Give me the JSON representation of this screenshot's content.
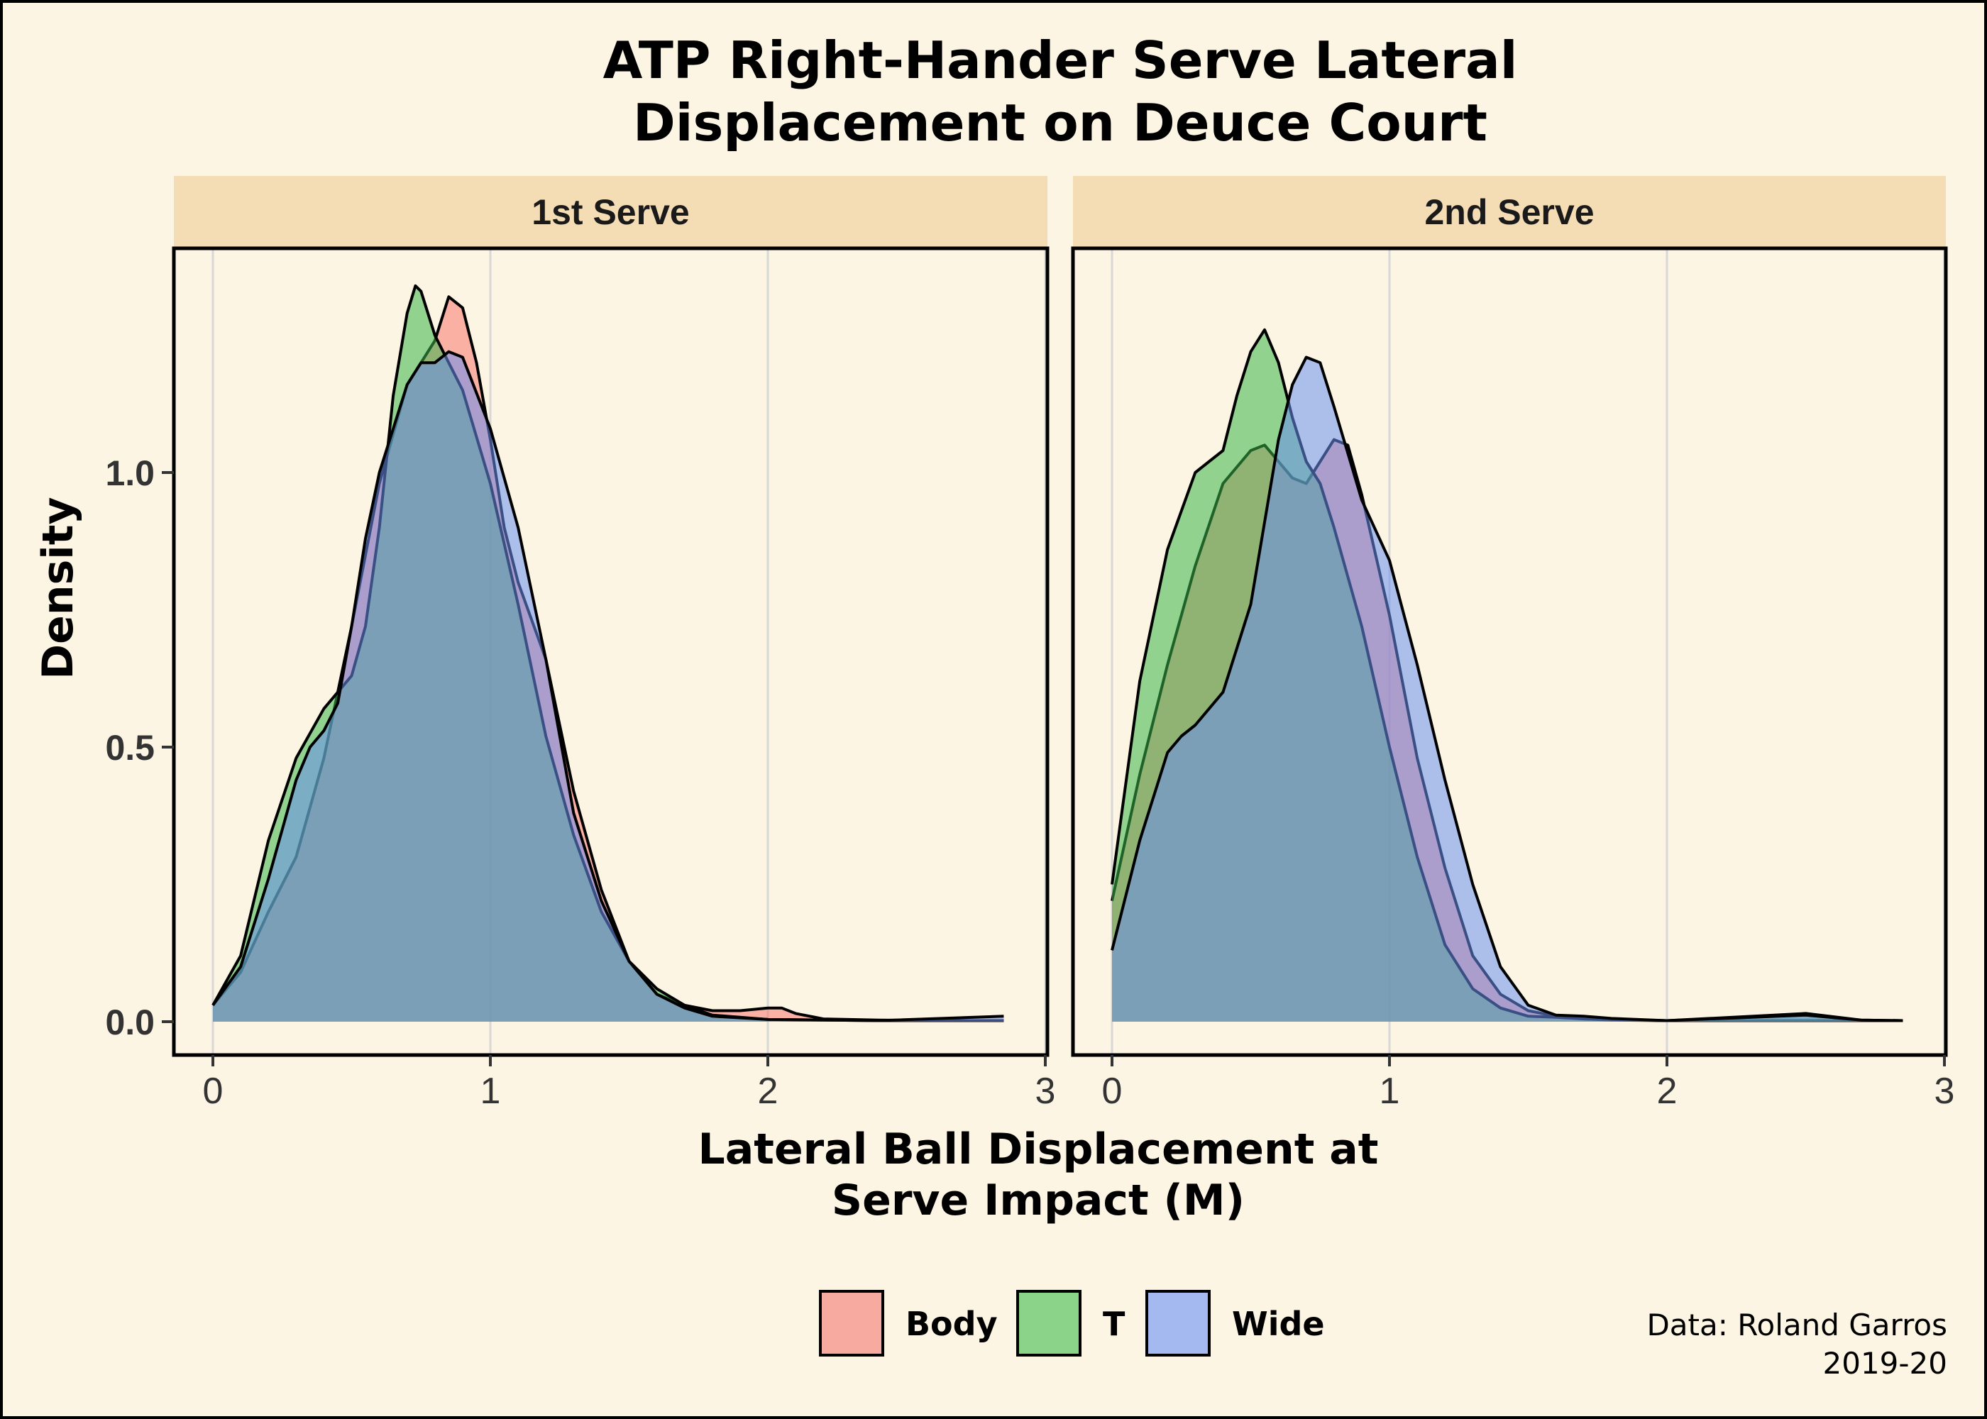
{
  "chart_data": {
    "type": "area",
    "title": [
      "ATP Right-Hander Serve Lateral",
      "Displacement on Deuce Court"
    ],
    "xlabel": [
      "Lateral Ball Displacement at",
      "Serve Impact (M)"
    ],
    "ylabel": "Density",
    "xlim": [
      0,
      3
    ],
    "ylim": [
      0,
      1.3
    ],
    "x_ticks": [
      "0",
      "1",
      "2",
      "3"
    ],
    "y_ticks": [
      "0.0",
      "0.5",
      "1.0"
    ],
    "legend_position": "bottom",
    "caption": [
      "Data: Roland Garros",
      "2019-20"
    ],
    "colors": {
      "Body": "#f8766d",
      "T": "#39b54a",
      "Wide": "#6a8ff0"
    },
    "series_order": [
      "Body",
      "T",
      "Wide"
    ],
    "panels": [
      {
        "label": "1st Serve",
        "series": [
          {
            "name": "Body",
            "x": [
              0,
              0.1,
              0.2,
              0.3,
              0.4,
              0.5,
              0.6,
              0.7,
              0.75,
              0.8,
              0.85,
              0.9,
              0.95,
              1.0,
              1.05,
              1.1,
              1.2,
              1.3,
              1.4,
              1.5,
              1.6,
              1.7,
              1.8,
              1.9,
              2.0,
              2.05,
              2.1,
              2.2,
              2.4,
              2.6,
              2.85
            ],
            "y": [
              0.03,
              0.09,
              0.2,
              0.3,
              0.48,
              0.72,
              0.98,
              1.16,
              1.2,
              1.24,
              1.32,
              1.3,
              1.2,
              1.06,
              0.9,
              0.8,
              0.66,
              0.42,
              0.24,
              0.11,
              0.05,
              0.03,
              0.02,
              0.02,
              0.025,
              0.025,
              0.015,
              0.005,
              0.003,
              0.002,
              0.002
            ]
          },
          {
            "name": "T",
            "x": [
              0,
              0.1,
              0.2,
              0.3,
              0.4,
              0.5,
              0.55,
              0.6,
              0.65,
              0.7,
              0.73,
              0.75,
              0.8,
              0.85,
              0.9,
              1.0,
              1.1,
              1.2,
              1.3,
              1.4,
              1.5,
              1.6,
              1.7,
              1.8,
              2.0,
              2.4,
              2.85
            ],
            "y": [
              0.03,
              0.12,
              0.33,
              0.48,
              0.57,
              0.63,
              0.72,
              0.9,
              1.14,
              1.29,
              1.34,
              1.33,
              1.25,
              1.2,
              1.15,
              0.98,
              0.76,
              0.52,
              0.34,
              0.2,
              0.11,
              0.06,
              0.03,
              0.012,
              0.004,
              0.002,
              0.002
            ]
          },
          {
            "name": "Wide",
            "x": [
              0,
              0.1,
              0.2,
              0.3,
              0.35,
              0.4,
              0.45,
              0.5,
              0.55,
              0.6,
              0.7,
              0.75,
              0.8,
              0.85,
              0.9,
              1.0,
              1.1,
              1.2,
              1.3,
              1.4,
              1.5,
              1.6,
              1.7,
              1.8,
              2.0,
              2.4,
              2.85
            ],
            "y": [
              0.03,
              0.1,
              0.26,
              0.44,
              0.5,
              0.53,
              0.58,
              0.72,
              0.88,
              1.0,
              1.16,
              1.2,
              1.2,
              1.22,
              1.21,
              1.08,
              0.9,
              0.66,
              0.38,
              0.22,
              0.11,
              0.05,
              0.025,
              0.01,
              0.004,
              0.002,
              0.01
            ]
          }
        ]
      },
      {
        "label": "2nd Serve",
        "series": [
          {
            "name": "Body",
            "x": [
              0,
              0.1,
              0.2,
              0.3,
              0.4,
              0.5,
              0.55,
              0.6,
              0.65,
              0.7,
              0.75,
              0.8,
              0.85,
              0.9,
              1.0,
              1.1,
              1.2,
              1.3,
              1.4,
              1.5,
              1.6,
              1.7,
              1.8,
              2.0,
              2.5,
              2.85
            ],
            "y": [
              0.22,
              0.45,
              0.65,
              0.83,
              0.98,
              1.04,
              1.05,
              1.02,
              0.99,
              0.98,
              1.02,
              1.06,
              1.05,
              0.96,
              0.74,
              0.48,
              0.28,
              0.12,
              0.05,
              0.02,
              0.01,
              0.005,
              0.003,
              0.002,
              0.002,
              0.002
            ]
          },
          {
            "name": "T",
            "x": [
              0,
              0.1,
              0.2,
              0.3,
              0.35,
              0.4,
              0.45,
              0.5,
              0.55,
              0.6,
              0.65,
              0.7,
              0.75,
              0.8,
              0.9,
              1.0,
              1.1,
              1.2,
              1.3,
              1.4,
              1.5,
              1.6,
              1.7,
              1.8,
              2.0,
              2.5,
              2.7,
              2.85
            ],
            "y": [
              0.25,
              0.62,
              0.86,
              1.0,
              1.02,
              1.04,
              1.14,
              1.22,
              1.26,
              1.2,
              1.1,
              1.02,
              0.98,
              0.9,
              0.72,
              0.5,
              0.3,
              0.14,
              0.06,
              0.025,
              0.01,
              0.008,
              0.005,
              0.004,
              0.002,
              0.015,
              0.003,
              0.002
            ]
          },
          {
            "name": "Wide",
            "x": [
              0,
              0.1,
              0.2,
              0.25,
              0.3,
              0.4,
              0.5,
              0.6,
              0.65,
              0.7,
              0.75,
              0.8,
              0.9,
              1.0,
              1.1,
              1.2,
              1.3,
              1.4,
              1.5,
              1.6,
              1.7,
              1.8,
              2.0,
              2.5,
              2.7,
              2.85
            ],
            "y": [
              0.13,
              0.33,
              0.49,
              0.52,
              0.54,
              0.6,
              0.76,
              1.06,
              1.16,
              1.21,
              1.2,
              1.12,
              0.95,
              0.84,
              0.65,
              0.44,
              0.25,
              0.1,
              0.03,
              0.012,
              0.01,
              0.006,
              0.002,
              0.012,
              0.003,
              0.002
            ]
          }
        ]
      }
    ]
  }
}
